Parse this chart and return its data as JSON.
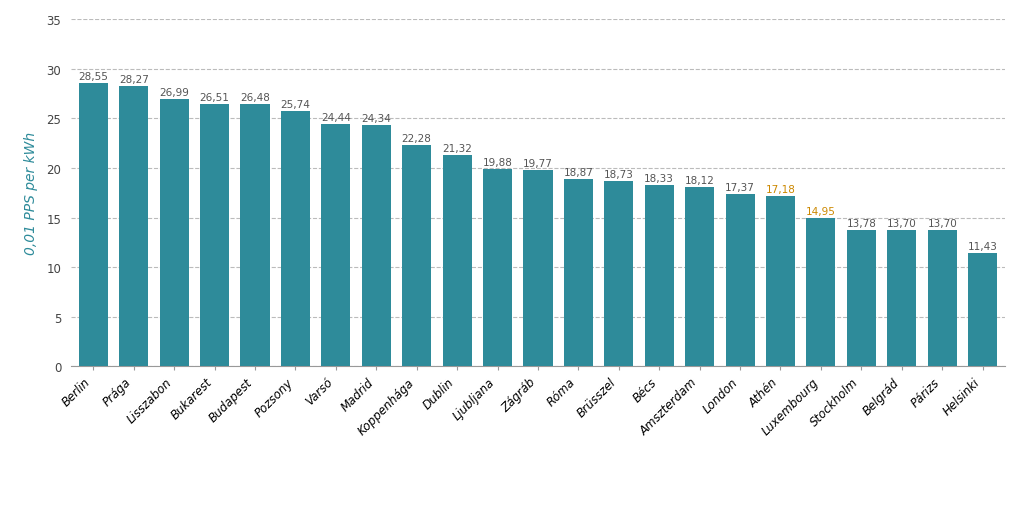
{
  "categories": [
    "Berlin",
    "Prága",
    "Lisszabon",
    "Bukarest",
    "Budapest",
    "Pozsony",
    "Varsó",
    "Madrid",
    "Koppenhága",
    "Dublin",
    "Ljubljana",
    "Zágráb",
    "Róma",
    "Brüsszel",
    "Bécs",
    "Amszterdam",
    "London",
    "Athén",
    "Luxembourg",
    "Stockholm",
    "Belgrád",
    "Párizs",
    "Helsinki"
  ],
  "values": [
    28.55,
    28.27,
    26.99,
    26.51,
    26.48,
    25.74,
    24.44,
    24.34,
    22.28,
    21.32,
    19.88,
    19.77,
    18.87,
    18.73,
    18.33,
    18.12,
    17.37,
    17.18,
    14.95,
    13.78,
    13.7,
    13.7,
    11.43
  ],
  "bar_color": "#2e8b9a",
  "ylabel": "0,01 PPS per kWh",
  "ylim": [
    0,
    35
  ],
  "yticks": [
    0,
    5,
    10,
    15,
    20,
    25,
    30,
    35
  ],
  "legend_color": "#2e8b9a",
  "background_color": "#ffffff",
  "grid_color": "#bbbbbb",
  "label_fontsize": 7.5,
  "axis_label_fontsize": 10,
  "tick_fontsize": 8.5,
  "value_label_color_default": "#555555",
  "value_label_color_highlight": "#cc8800",
  "highlight_indices": [
    17,
    18
  ]
}
